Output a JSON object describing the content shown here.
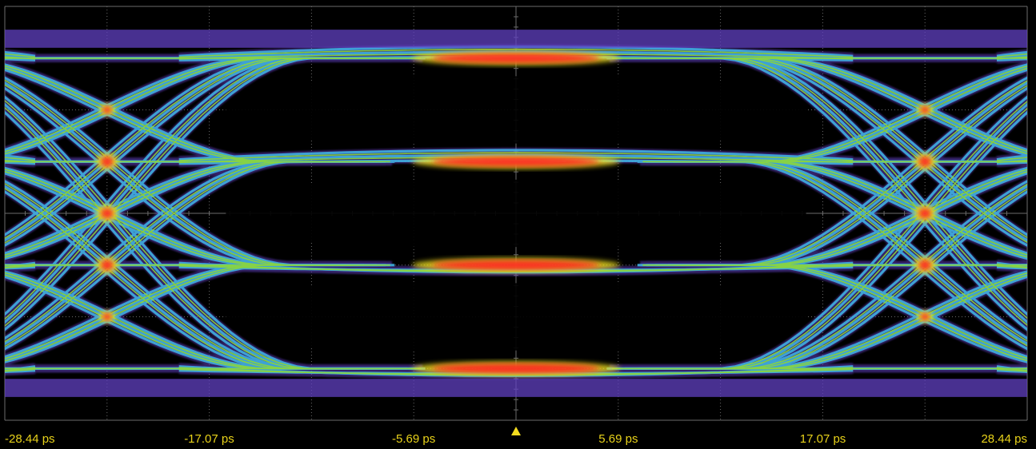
{
  "chart_data": {
    "type": "eye-diagram",
    "title": "",
    "xlabel": "",
    "ylabel": "",
    "x_unit": "ps",
    "xlim": [
      -28.44,
      28.44
    ],
    "ylim": [
      -4,
      4
    ],
    "x_ticks": [
      {
        "value": -28.44,
        "label": "-28.44 ps"
      },
      {
        "value": -17.07,
        "label": "-17.07 ps"
      },
      {
        "value": -5.69,
        "label": "-5.69 ps"
      },
      {
        "value": 5.69,
        "label": "5.69 ps"
      },
      {
        "value": 17.07,
        "label": "17.07 ps"
      },
      {
        "value": 28.44,
        "label": "28.44 ps"
      }
    ],
    "signal": {
      "modulation": "PAM4",
      "unit_interval_ps": 22.75,
      "levels": [
        -3,
        -1,
        1,
        3
      ],
      "eye_center_x": 0,
      "crossing_x": [
        -22.75,
        22.75
      ],
      "eye_openings": [
        {
          "name": "upper",
          "y_center": 2,
          "height": 1.3
        },
        {
          "name": "middle",
          "y_center": 0,
          "height": 1.3
        },
        {
          "name": "lower",
          "y_center": -2,
          "height": 1.3
        }
      ]
    },
    "grid": true,
    "grid_divisions": {
      "x": 10,
      "y": 8
    },
    "trigger_marker_x": 0,
    "color_scale": {
      "sparse": "#6040c0",
      "low": "#40b8e8",
      "medium": "#8ed838",
      "high": "#f0e020",
      "peak": "#ff2020"
    }
  },
  "colors": {
    "background": "#000000",
    "grid": "#6b6b6b",
    "tick_text": "#e8d21a",
    "trigger_marker": "#f4dc1f"
  }
}
